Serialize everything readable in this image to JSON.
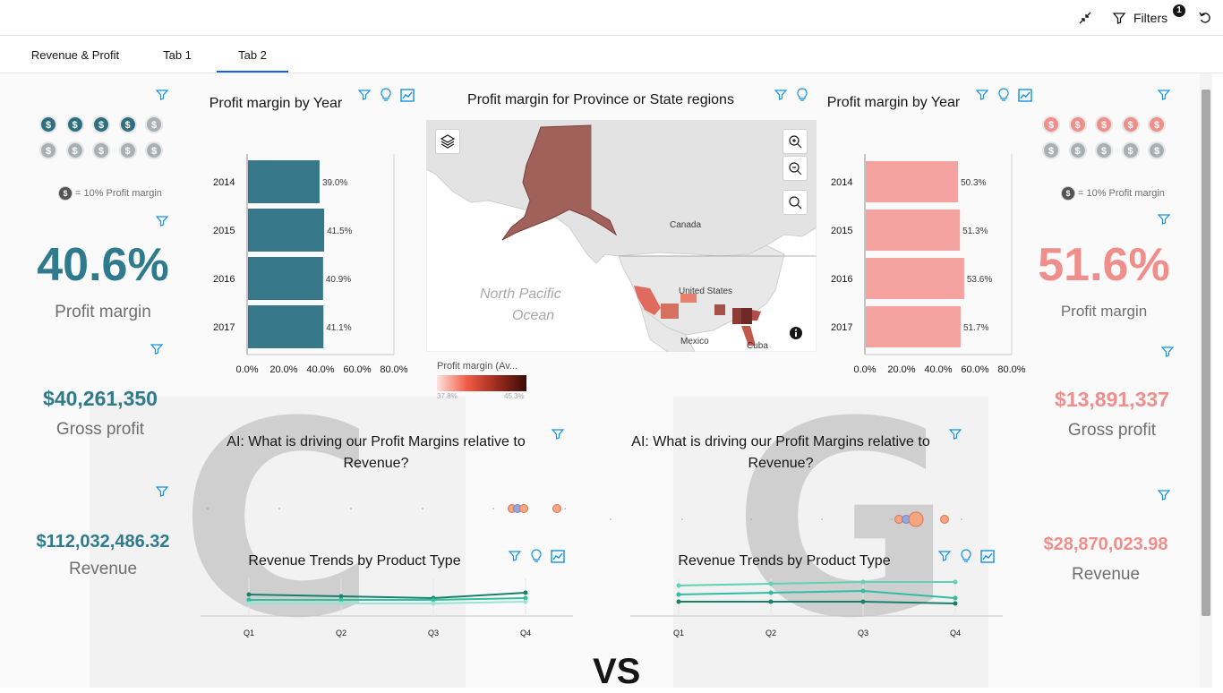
{
  "topbar": {
    "filters_label": "Filters",
    "filters_count": "1"
  },
  "tabs": [
    {
      "label": "Revenue & Profit"
    },
    {
      "label": "Tab 1"
    },
    {
      "label": "Tab 2"
    }
  ],
  "left": {
    "coin_symbol": "$",
    "coin_legend": "= 10% Profit margin",
    "profit_margin_value": "40.6%",
    "profit_margin_label": "Profit margin",
    "gross_profit_value": "$40,261,350",
    "gross_profit_label": "Gross profit",
    "revenue_value": "$112,032,486.32",
    "revenue_label": "Revenue",
    "filled_coins": 4,
    "accent": "#2f7a8c"
  },
  "right": {
    "coin_symbol": "$",
    "coin_legend": "= 10% Profit margin",
    "profit_margin_value": "51.6%",
    "profit_margin_label": "Profit margin",
    "gross_profit_value": "$13,891,337",
    "gross_profit_label": "Gross profit",
    "revenue_value": "$28,870,023.98",
    "revenue_label": "Revenue",
    "filled_coins": 5,
    "accent": "#f08e8b"
  },
  "map": {
    "title": "Profit margin for Province or State regions",
    "labels": {
      "canada": "Canada",
      "us": "United States",
      "mexico": "Mexico",
      "cuba": "Cuba",
      "ocean_line1": "North Pacific",
      "ocean_line2": "Ocean"
    },
    "legend_title": "Profit margin (Av...",
    "legend_min": "37.8%",
    "legend_max": "45.3%",
    "icons": [
      "layers-icon",
      "zoom-in-icon",
      "zoom-out-icon",
      "search-icon",
      "info-icon"
    ]
  },
  "ai_left": {
    "title": "AI: What is driving our Profit Margins relative to Revenue?"
  },
  "ai_right": {
    "title": "AI: What is driving our Profit Margins relative to Revenue?"
  },
  "trend_left": {
    "title": "Revenue Trends by Product Type"
  },
  "trend_right": {
    "title": "Revenue Trends by Product Type"
  },
  "footer": {
    "vs": "VS"
  },
  "watermark": {
    "left_letter": "C",
    "right_letter": "G"
  },
  "chart_data": [
    {
      "type": "bar",
      "title": "Profit margin by Year",
      "orientation": "horizontal",
      "categories": [
        "2014",
        "2015",
        "2016",
        "2017"
      ],
      "values": [
        39.0,
        41.5,
        40.9,
        41.1
      ],
      "data_labels": [
        "39.0%",
        "41.5%",
        "40.9%",
        "41.1%"
      ],
      "x_ticks": [
        "0.0%",
        "20.0%",
        "40.0%",
        "60.0%",
        "80.0%"
      ],
      "xlim": [
        0,
        80
      ],
      "color": "#367789"
    },
    {
      "type": "bar",
      "title": "Profit margin by Year",
      "orientation": "horizontal",
      "categories": [
        "2014",
        "2015",
        "2016",
        "2017"
      ],
      "values": [
        50.3,
        51.3,
        53.6,
        51.7
      ],
      "data_labels": [
        "50.3%",
        "51.3%",
        "53.6%",
        "51.7%"
      ],
      "x_ticks": [
        "0.0%",
        "20.0%",
        "40.0%",
        "60.0%",
        "80.0%"
      ],
      "xlim": [
        0,
        80
      ],
      "color": "#f4a3a0"
    },
    {
      "type": "line",
      "title": "Revenue Trends by Product Type",
      "categories": [
        "Q1",
        "Q2",
        "Q3",
        "Q4"
      ],
      "series": [
        {
          "values": [
            100,
            99,
            98,
            101
          ],
          "color": "#1a7f6b"
        },
        {
          "values": [
            97,
            97,
            97,
            98
          ],
          "color": "#2fbfa0"
        },
        {
          "values": [
            95,
            95,
            95,
            96
          ],
          "color": "#9be3d3"
        }
      ],
      "ylim": [
        0,
        120
      ]
    },
    {
      "type": "line",
      "title": "Revenue Trends by Product Type",
      "categories": [
        "Q1",
        "Q2",
        "Q3",
        "Q4"
      ],
      "series": [
        {
          "values": [
            105,
            106,
            107,
            107
          ],
          "color": "#5fd1b5"
        },
        {
          "values": [
            100,
            101,
            102,
            98
          ],
          "color": "#2fbfa0"
        },
        {
          "values": [
            96,
            96,
            96,
            95
          ],
          "color": "#1a7f6b"
        }
      ],
      "ylim": [
        0,
        120
      ]
    }
  ]
}
